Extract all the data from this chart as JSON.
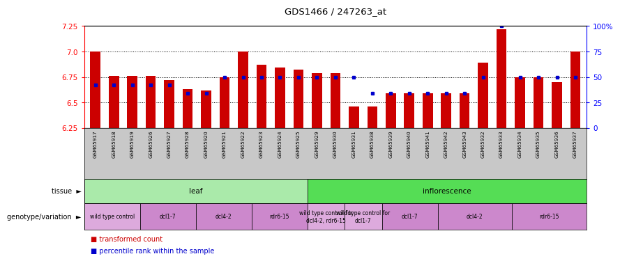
{
  "title": "GDS1466 / 247263_at",
  "samples": [
    "GSM65917",
    "GSM65918",
    "GSM65919",
    "GSM65926",
    "GSM65927",
    "GSM65928",
    "GSM65920",
    "GSM65921",
    "GSM65922",
    "GSM65923",
    "GSM65924",
    "GSM65925",
    "GSM65929",
    "GSM65930",
    "GSM65931",
    "GSM65938",
    "GSM65939",
    "GSM65940",
    "GSM65941",
    "GSM65942",
    "GSM65943",
    "GSM65932",
    "GSM65933",
    "GSM65934",
    "GSM65935",
    "GSM65936",
    "GSM65937"
  ],
  "bar_heights": [
    7.0,
    6.76,
    6.76,
    6.76,
    6.72,
    6.63,
    6.62,
    6.75,
    7.0,
    6.87,
    6.84,
    6.82,
    6.79,
    6.79,
    6.46,
    6.46,
    6.59,
    6.59,
    6.59,
    6.59,
    6.59,
    6.89,
    7.22,
    6.75,
    6.75,
    6.7,
    7.0
  ],
  "percentile_ranks": [
    42,
    42,
    42,
    42,
    42,
    34,
    34,
    50,
    50,
    50,
    50,
    50,
    50,
    50,
    50,
    34,
    34,
    34,
    34,
    34,
    34,
    50,
    100,
    50,
    50,
    50,
    50
  ],
  "ymin": 6.25,
  "ymax": 7.25,
  "yticks": [
    6.25,
    6.5,
    6.75,
    7.0,
    7.25
  ],
  "right_yticks": [
    0,
    25,
    50,
    75,
    100
  ],
  "right_ytick_labels": [
    "0",
    "25",
    "50",
    "75",
    "100%"
  ],
  "tissue_row": [
    {
      "label": "leaf",
      "start": 0,
      "end": 12,
      "color": "#AAEAAA"
    },
    {
      "label": "inflorescence",
      "start": 12,
      "end": 27,
      "color": "#55DD55"
    }
  ],
  "genotype_row": [
    {
      "label": "wild type control",
      "start": 0,
      "end": 3,
      "color": "#DDAADD"
    },
    {
      "label": "dcl1-7",
      "start": 3,
      "end": 6,
      "color": "#CC88CC"
    },
    {
      "label": "dcl4-2",
      "start": 6,
      "end": 9,
      "color": "#CC88CC"
    },
    {
      "label": "rdr6-15",
      "start": 9,
      "end": 12,
      "color": "#CC88CC"
    },
    {
      "label": "wild type control for\ndcl4-2, rdr6-15",
      "start": 12,
      "end": 14,
      "color": "#DDAADD"
    },
    {
      "label": "wild type control for\ndcl1-7",
      "start": 14,
      "end": 16,
      "color": "#DDAADD"
    },
    {
      "label": "dcl1-7",
      "start": 16,
      "end": 19,
      "color": "#CC88CC"
    },
    {
      "label": "dcl4-2",
      "start": 19,
      "end": 23,
      "color": "#CC88CC"
    },
    {
      "label": "rdr6-15",
      "start": 23,
      "end": 27,
      "color": "#CC88CC"
    }
  ],
  "bar_color": "#CC0000",
  "percentile_color": "#0000CC",
  "bg_color": "#FFFFFF",
  "legend_items": [
    {
      "label": "transformed count",
      "color": "#CC0000"
    },
    {
      "label": "percentile rank within the sample",
      "color": "#0000CC"
    }
  ]
}
